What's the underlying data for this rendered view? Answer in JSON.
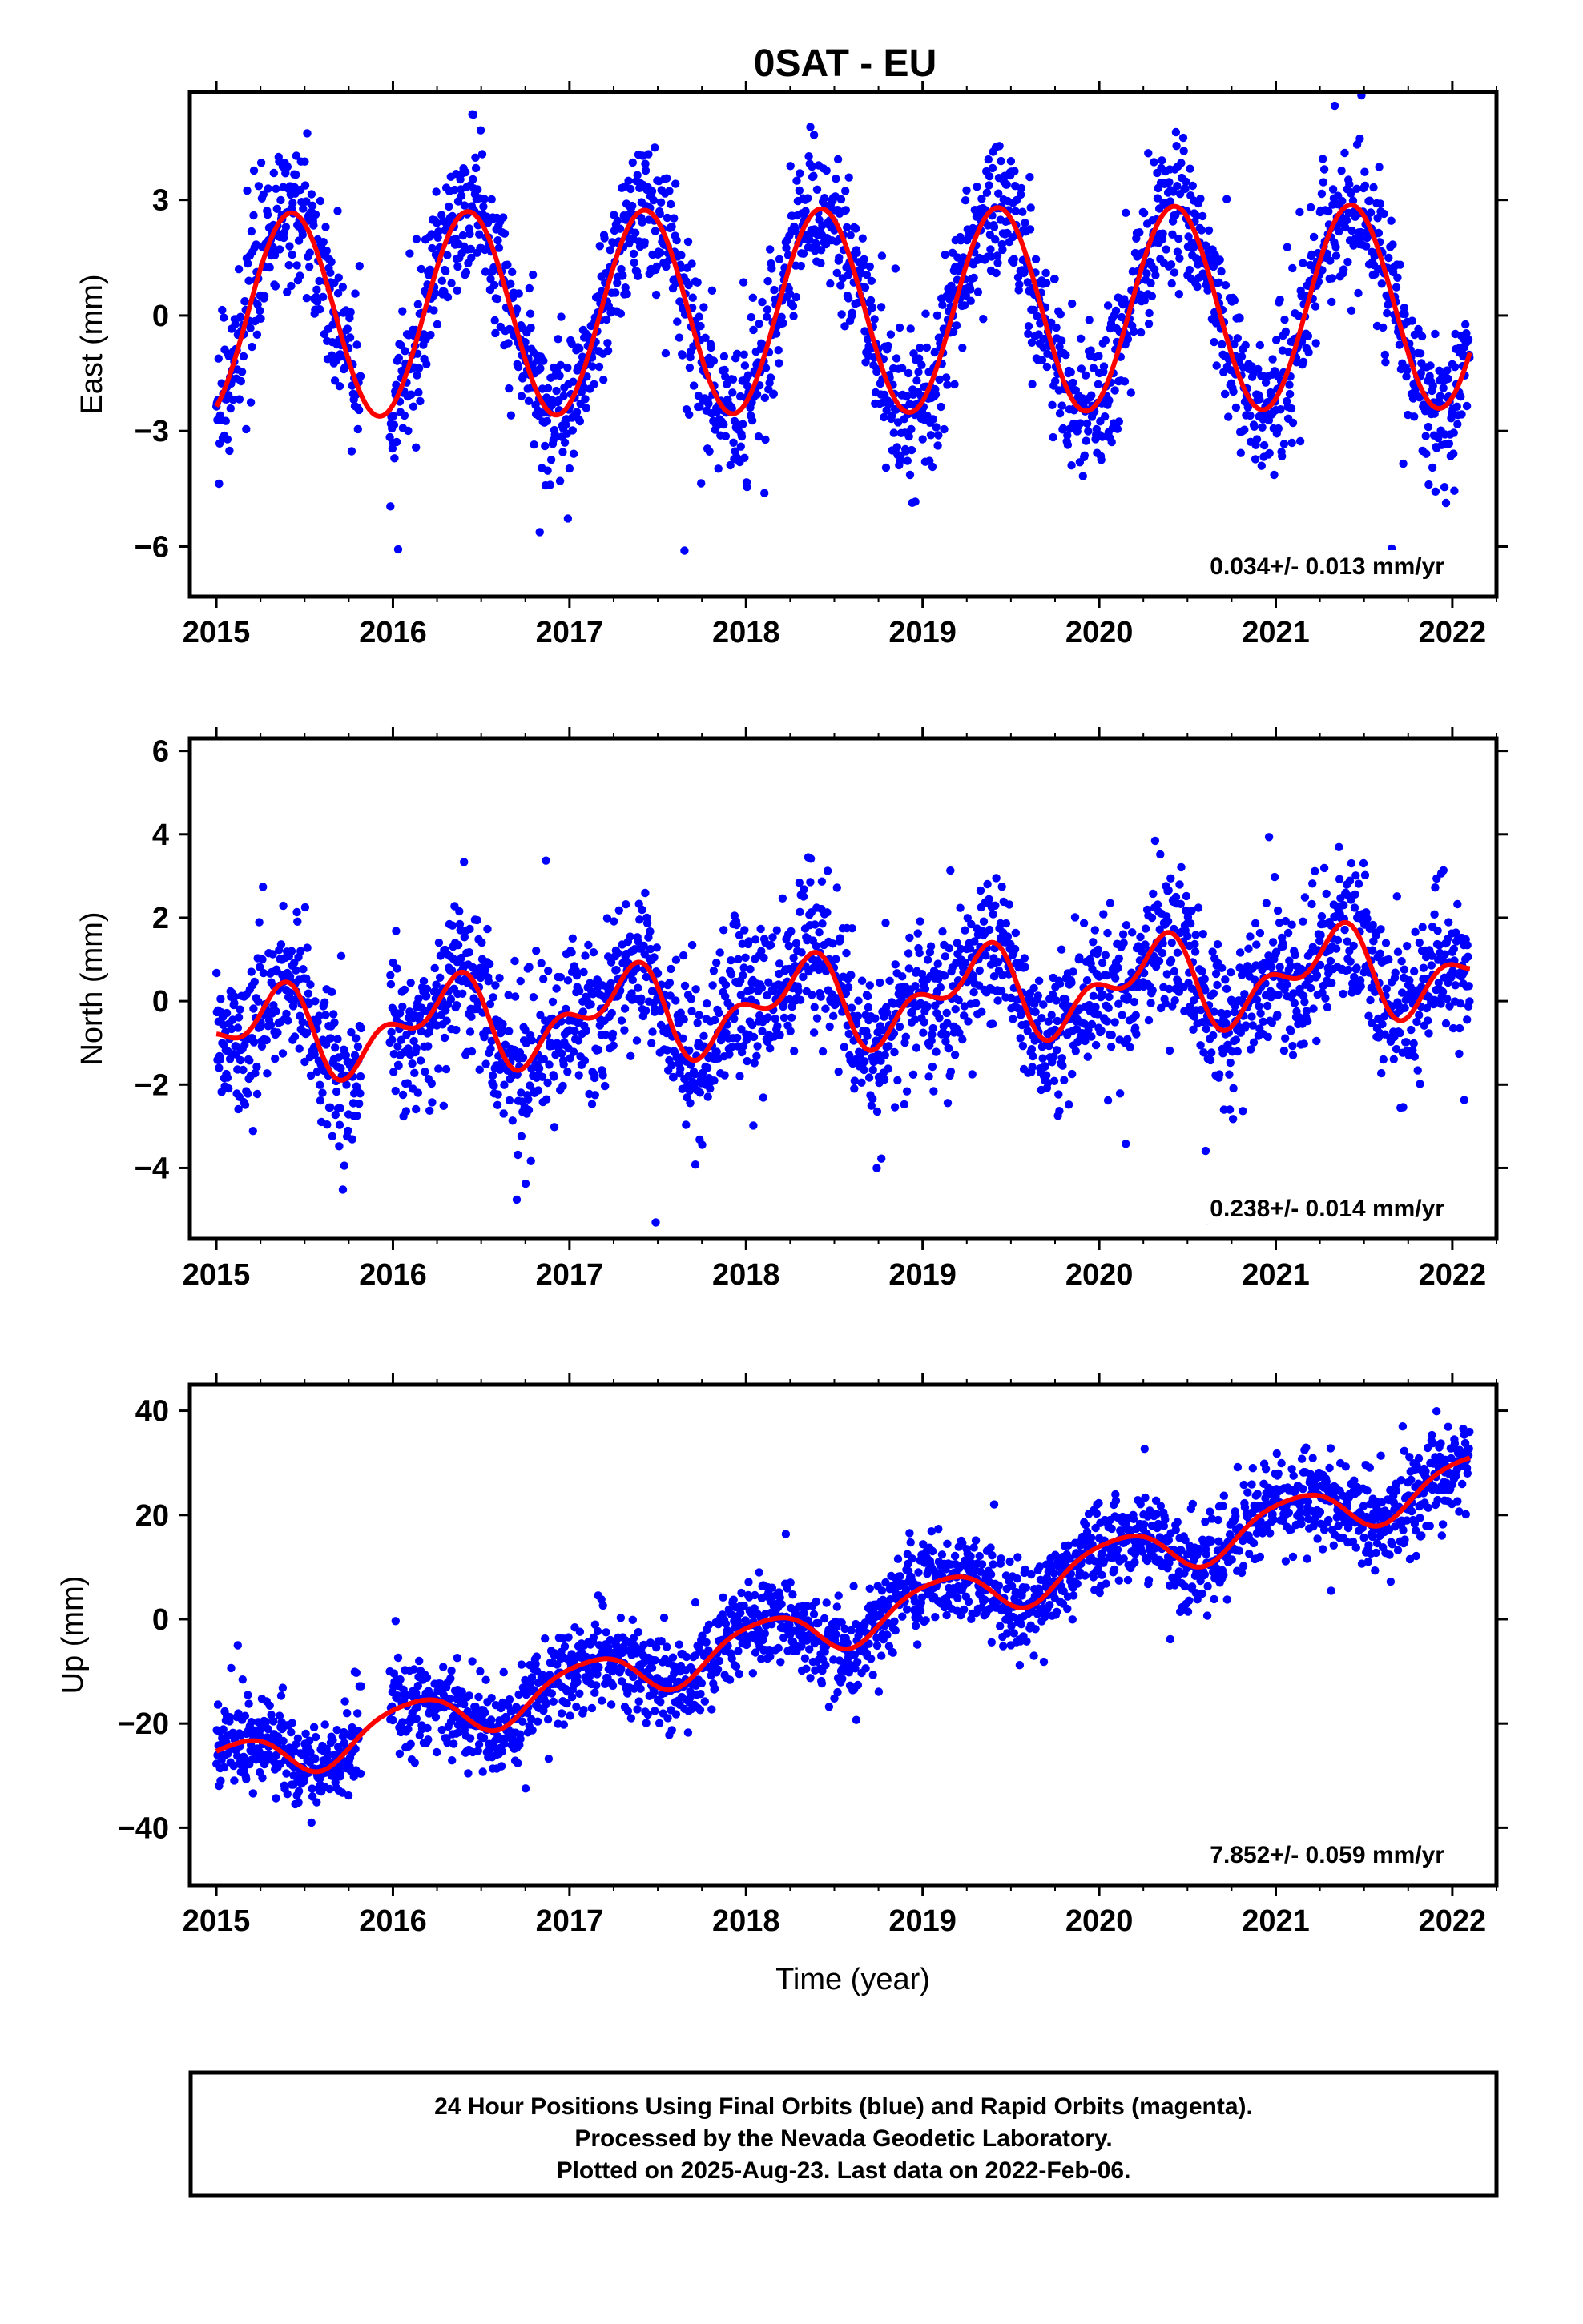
{
  "title": "0SAT - EU",
  "colors": {
    "points": "#0000ff",
    "fit": "#ff0000",
    "frame": "#000000"
  },
  "footer": {
    "line1": "24 Hour Positions Using Final Orbits (blue) and Rapid Orbits (magenta).",
    "line2": "Processed by the Nevada Geodetic Laboratory.",
    "line3": "Plotted on 2025-Aug-23. Last data on 2022-Feb-06."
  },
  "chart_data": [
    {
      "type": "scatter",
      "ylabel": "East (mm)",
      "xlabel": "",
      "xlim": [
        2014.85,
        2022.25
      ],
      "ylim": [
        -7.3,
        5.8
      ],
      "x_ticks": [
        2015,
        2016,
        2017,
        2018,
        2019,
        2020,
        2021,
        2022
      ],
      "y_ticks": [
        -6,
        -3,
        0,
        3
      ],
      "y_tick_labels": [
        "−6",
        "−3",
        "0",
        "3"
      ],
      "data_range": [
        2015.0,
        2022.1
      ],
      "annotation": "0.034+/- 0.013 mm/yr",
      "model": {
        "offset": 0.0,
        "trend": 0.034,
        "amp1": 2.65,
        "phase1": 0.175,
        "amp2": 0.0,
        "phase2": 0.0,
        "scatter": 0.95
      },
      "series": [
        {
          "kind": "scatter"
        },
        {
          "kind": "line"
        }
      ]
    },
    {
      "type": "scatter",
      "ylabel": "North (mm)",
      "xlabel": "",
      "xlim": [
        2014.85,
        2022.25
      ],
      "ylim": [
        -5.7,
        6.3
      ],
      "x_ticks": [
        2015,
        2016,
        2017,
        2018,
        2019,
        2020,
        2021,
        2022
      ],
      "y_ticks": [
        -4,
        -2,
        0,
        2,
        4,
        6
      ],
      "y_tick_labels": [
        "−4",
        "−2",
        "0",
        "2",
        "4",
        "6"
      ],
      "data_range": [
        2015.0,
        2022.1
      ],
      "annotation": "0.238+/- 0.014 mm/yr",
      "model": {
        "offset": -0.85,
        "trend": 0.238,
        "amp1": 0.85,
        "phase1": 0.05,
        "amp2": 0.55,
        "phase2": 0.3,
        "scatter": 0.9
      },
      "series": [
        {
          "kind": "scatter"
        },
        {
          "kind": "line"
        }
      ]
    },
    {
      "type": "scatter",
      "ylabel": "Up (mm)",
      "xlabel": "Time (year)",
      "xlim": [
        2014.85,
        2022.25
      ],
      "ylim": [
        -51,
        45
      ],
      "x_ticks": [
        2015,
        2016,
        2017,
        2018,
        2019,
        2020,
        2021,
        2022
      ],
      "y_ticks": [
        -40,
        -20,
        0,
        20,
        40
      ],
      "y_tick_labels": [
        "−40",
        "−20",
        "0",
        "20",
        "40"
      ],
      "data_range": [
        2015.0,
        2022.1
      ],
      "annotation": "7.852+/- 0.059 mm/yr",
      "model": {
        "offset": -28.5,
        "trend": 7.852,
        "amp1": 4.5,
        "phase1": 0.85,
        "amp2": 0.8,
        "phase2": 0.2,
        "scatter": 4.2
      },
      "series": [
        {
          "kind": "scatter"
        },
        {
          "kind": "line"
        }
      ]
    }
  ]
}
